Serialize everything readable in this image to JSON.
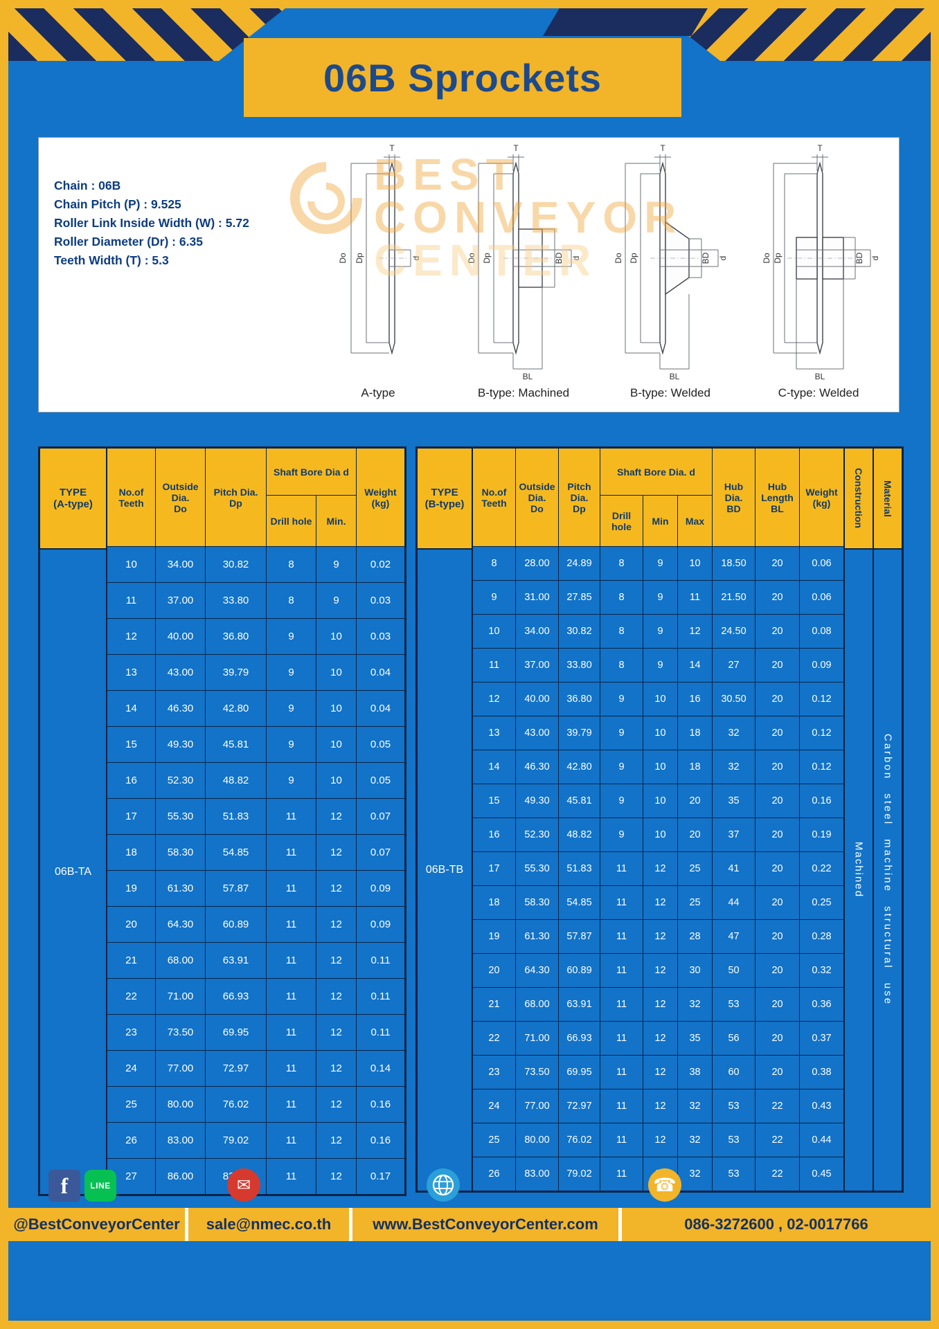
{
  "title": "06B Sprockets",
  "colors": {
    "page_blue": "#1273c8",
    "accent_yellow": "#f2b428",
    "navy": "#1b2d5e",
    "header_yellow": "#f5b91f",
    "header_text": "#123a66"
  },
  "specs": {
    "lines": [
      "Chain : 06B",
      "Chain Pitch (P) : 9.525",
      "Roller Link Inside Width (W) : 5.72",
      "Roller Diameter (Dr) : 6.35",
      "Teeth Width (T) : 5.3"
    ]
  },
  "diagrams": {
    "labels": [
      "A-type",
      "B-type: Machined",
      "B-type: Welded",
      "C-type: Welded"
    ],
    "dim_labels": {
      "t": "T",
      "do_": "Do",
      "dp": "Dp",
      "d": "d",
      "bd": "BD",
      "bl": "BL"
    },
    "watermark": {
      "line1": "BEST",
      "line2": "CONVEYOR",
      "line3": "CENTER"
    }
  },
  "table_a": {
    "type_value": "06B-TA",
    "headers": {
      "type": "TYPE\n(A-type)",
      "teeth": "No.of\nTeeth",
      "outside": "Outside\nDia.\nDo",
      "pitch": "Pitch Dia.\nDp",
      "shaft_bore": "Shaft Bore Dia d",
      "drill": "Drill hole",
      "min": "Min.",
      "weight": "Weight\n(kg)"
    },
    "rows": [
      [
        "10",
        "34.00",
        "30.82",
        "8",
        "9",
        "0.02"
      ],
      [
        "11",
        "37.00",
        "33.80",
        "8",
        "9",
        "0.03"
      ],
      [
        "12",
        "40.00",
        "36.80",
        "9",
        "10",
        "0.03"
      ],
      [
        "13",
        "43.00",
        "39.79",
        "9",
        "10",
        "0.04"
      ],
      [
        "14",
        "46.30",
        "42.80",
        "9",
        "10",
        "0.04"
      ],
      [
        "15",
        "49.30",
        "45.81",
        "9",
        "10",
        "0.05"
      ],
      [
        "16",
        "52.30",
        "48.82",
        "9",
        "10",
        "0.05"
      ],
      [
        "17",
        "55.30",
        "51.83",
        "11",
        "12",
        "0.07"
      ],
      [
        "18",
        "58.30",
        "54.85",
        "11",
        "12",
        "0.07"
      ],
      [
        "19",
        "61.30",
        "57.87",
        "11",
        "12",
        "0.09"
      ],
      [
        "20",
        "64.30",
        "60.89",
        "11",
        "12",
        "0.09"
      ],
      [
        "21",
        "68.00",
        "63.91",
        "11",
        "12",
        "0.11"
      ],
      [
        "22",
        "71.00",
        "66.93",
        "11",
        "12",
        "0.11"
      ],
      [
        "23",
        "73.50",
        "69.95",
        "11",
        "12",
        "0.11"
      ],
      [
        "24",
        "77.00",
        "72.97",
        "11",
        "12",
        "0.14"
      ],
      [
        "25",
        "80.00",
        "76.02",
        "11",
        "12",
        "0.16"
      ],
      [
        "26",
        "83.00",
        "79.02",
        "11",
        "12",
        "0.16"
      ],
      [
        "27",
        "86.00",
        "82.02",
        "11",
        "12",
        "0.17"
      ]
    ]
  },
  "table_b": {
    "type_value": "06B-TB",
    "construction_value": "Machined",
    "material_value": "Carbon steel machine structural use",
    "headers": {
      "type": "TYPE\n(B-type)",
      "teeth": "No.of\nTeeth",
      "outside": "Outside\nDia.\nDo",
      "pitch": "Pitch\nDia.\nDp",
      "shaft_bore": "Shaft Bore Dia. d",
      "drill": "Drill hole",
      "min": "Min",
      "max": "Max",
      "hub_dia": "Hub\nDia.\nBD",
      "hub_length": "Hub\nLength\nBL",
      "weight": "Weight\n(kg)",
      "construction": "Construction",
      "material": "Material"
    },
    "rows": [
      [
        "8",
        "28.00",
        "24.89",
        "8",
        "9",
        "10",
        "18.50",
        "20",
        "0.06"
      ],
      [
        "9",
        "31.00",
        "27.85",
        "8",
        "9",
        "11",
        "21.50",
        "20",
        "0.06"
      ],
      [
        "10",
        "34.00",
        "30.82",
        "8",
        "9",
        "12",
        "24.50",
        "20",
        "0.08"
      ],
      [
        "11",
        "37.00",
        "33.80",
        "8",
        "9",
        "14",
        "27",
        "20",
        "0.09"
      ],
      [
        "12",
        "40.00",
        "36.80",
        "9",
        "10",
        "16",
        "30.50",
        "20",
        "0.12"
      ],
      [
        "13",
        "43.00",
        "39.79",
        "9",
        "10",
        "18",
        "32",
        "20",
        "0.12"
      ],
      [
        "14",
        "46.30",
        "42.80",
        "9",
        "10",
        "18",
        "32",
        "20",
        "0.12"
      ],
      [
        "15",
        "49.30",
        "45.81",
        "9",
        "10",
        "20",
        "35",
        "20",
        "0.16"
      ],
      [
        "16",
        "52.30",
        "48.82",
        "9",
        "10",
        "20",
        "37",
        "20",
        "0.19"
      ],
      [
        "17",
        "55.30",
        "51.83",
        "11",
        "12",
        "25",
        "41",
        "20",
        "0.22"
      ],
      [
        "18",
        "58.30",
        "54.85",
        "11",
        "12",
        "25",
        "44",
        "20",
        "0.25"
      ],
      [
        "19",
        "61.30",
        "57.87",
        "11",
        "12",
        "28",
        "47",
        "20",
        "0.28"
      ],
      [
        "20",
        "64.30",
        "60.89",
        "11",
        "12",
        "30",
        "50",
        "20",
        "0.32"
      ],
      [
        "21",
        "68.00",
        "63.91",
        "11",
        "12",
        "32",
        "53",
        "20",
        "0.36"
      ],
      [
        "22",
        "71.00",
        "66.93",
        "11",
        "12",
        "35",
        "56",
        "20",
        "0.37"
      ],
      [
        "23",
        "73.50",
        "69.95",
        "11",
        "12",
        "38",
        "60",
        "20",
        "0.38"
      ],
      [
        "24",
        "77.00",
        "72.97",
        "11",
        "12",
        "32",
        "53",
        "22",
        "0.43"
      ],
      [
        "25",
        "80.00",
        "76.02",
        "11",
        "12",
        "32",
        "53",
        "22",
        "0.44"
      ],
      [
        "26",
        "83.00",
        "79.02",
        "11",
        "12",
        "32",
        "53",
        "22",
        "0.45"
      ]
    ]
  },
  "footer": {
    "facebook_letter": "f",
    "line_label": "LINE",
    "mail_glyph": "✉",
    "phone_glyph": "☎",
    "social": "@BestConveyorCenter",
    "email": "sale@nmec.co.th",
    "website": "www.BestConveyorCenter.com",
    "phones": "086-3272600 , 02-0017766"
  }
}
